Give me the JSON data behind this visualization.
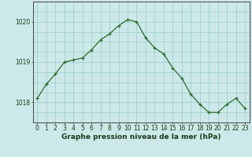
{
  "x": [
    0,
    1,
    2,
    3,
    4,
    5,
    6,
    7,
    8,
    9,
    10,
    11,
    12,
    13,
    14,
    15,
    16,
    17,
    18,
    19,
    20,
    21,
    22,
    23
  ],
  "y": [
    1018.1,
    1018.45,
    1018.7,
    1019.0,
    1019.05,
    1019.1,
    1019.3,
    1019.55,
    1019.7,
    1019.9,
    1020.05,
    1020.0,
    1019.6,
    1019.35,
    1019.2,
    1018.85,
    1018.6,
    1018.2,
    1017.95,
    1017.75,
    1017.75,
    1017.95,
    1018.1,
    1017.85
  ],
  "line_color": "#2d6a2d",
  "marker_color": "#2d6a2d",
  "bg_color": "#cce8e8",
  "grid_color": "#99cccc",
  "axis_label_color": "#1a3a1a",
  "xlabel": "Graphe pression niveau de la mer (hPa)",
  "ylim_min": 1017.5,
  "ylim_max": 1020.5,
  "yticks": [
    1018,
    1019,
    1020
  ],
  "xticks": [
    0,
    1,
    2,
    3,
    4,
    5,
    6,
    7,
    8,
    9,
    10,
    11,
    12,
    13,
    14,
    15,
    16,
    17,
    18,
    19,
    20,
    21,
    22,
    23
  ],
  "tick_fontsize": 5.5,
  "xlabel_fontsize": 6.5
}
